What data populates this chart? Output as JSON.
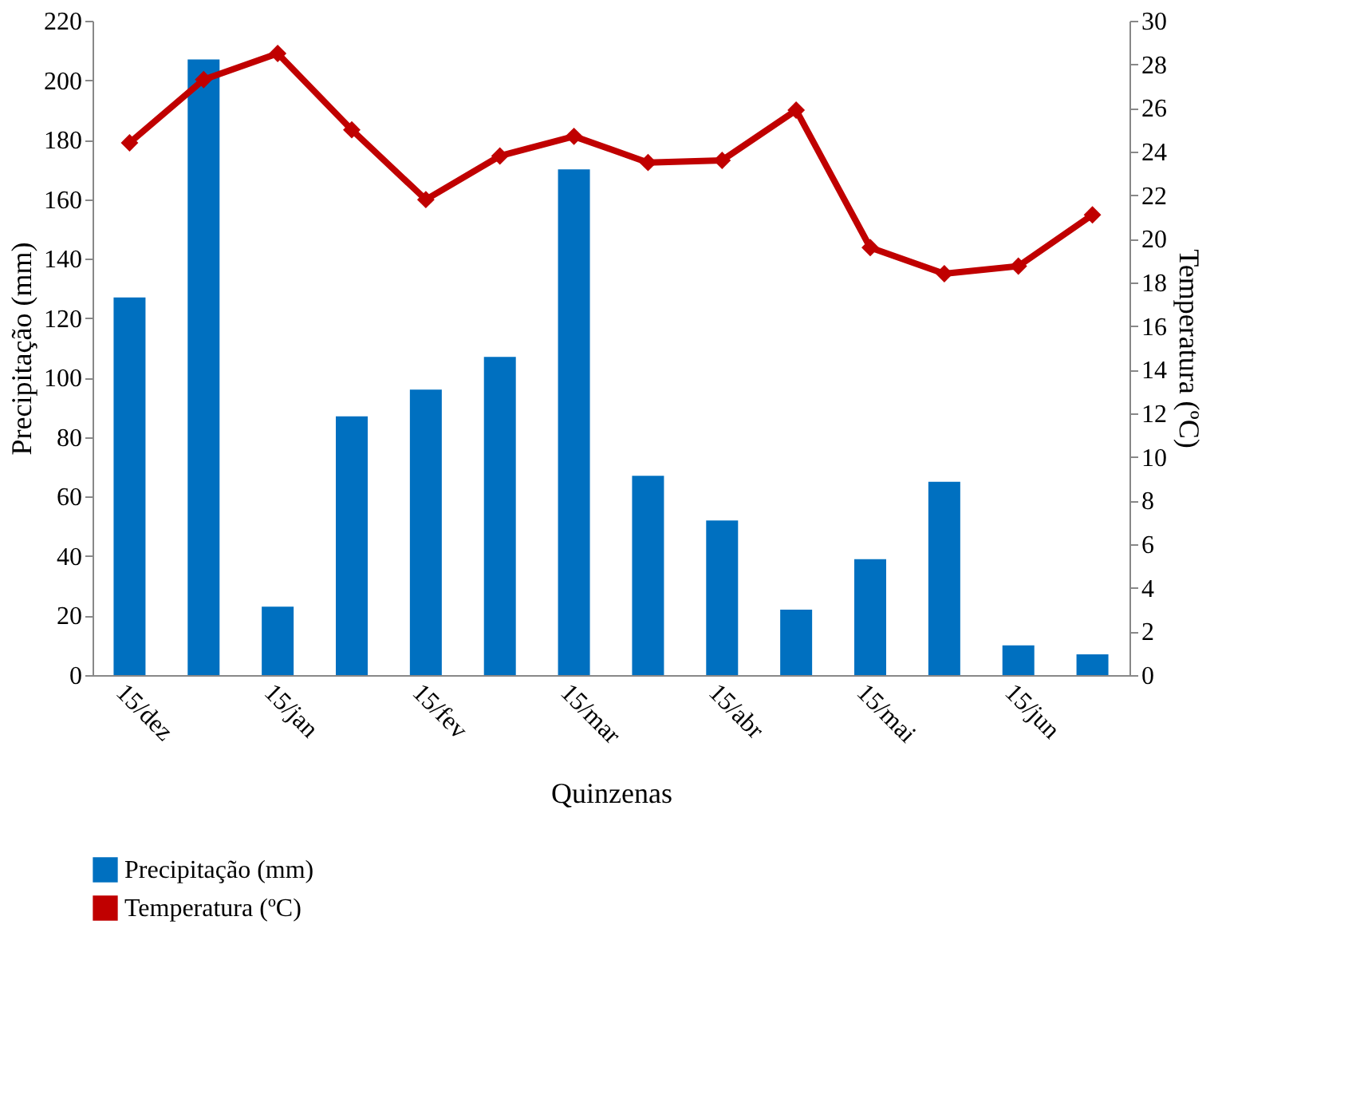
{
  "chart_data": {
    "type": "bar",
    "xlabel": "Quinzenas",
    "ylabel": "Precipitação (mm)",
    "y2label": "Temperatura (ºC)",
    "categories": [
      "15/dez",
      null,
      "15/jan",
      null,
      "15/fev",
      null,
      "15/mar",
      null,
      "15/abr",
      null,
      "15/mai",
      null,
      "15/jun",
      null
    ],
    "series": [
      {
        "name": "Precipitação (mm)",
        "color": "#0070c0",
        "values": [
          127,
          207,
          23,
          87,
          96,
          107,
          170,
          67,
          52,
          22,
          39,
          65,
          10,
          7
        ]
      },
      {
        "name": "Temperatura (ºC)",
        "type": "line",
        "axis": "y2",
        "color": "#c00000",
        "marker": "diamond",
        "values": [
          24.4,
          27.3,
          28.5,
          25.0,
          21.8,
          23.8,
          24.7,
          23.5,
          23.6,
          25.9,
          19.6,
          18.4,
          18.75,
          21.1
        ]
      }
    ],
    "ylim": [
      0,
      220
    ],
    "yticks": [
      0,
      20,
      40,
      60,
      80,
      100,
      120,
      140,
      160,
      180,
      200,
      220
    ],
    "y2lim": [
      0,
      30
    ],
    "y2ticks": [
      0,
      2,
      4,
      6,
      8,
      10,
      12,
      14,
      16,
      18,
      20,
      22,
      24,
      26,
      28,
      30
    ],
    "grid": false,
    "legend": "bottom"
  }
}
